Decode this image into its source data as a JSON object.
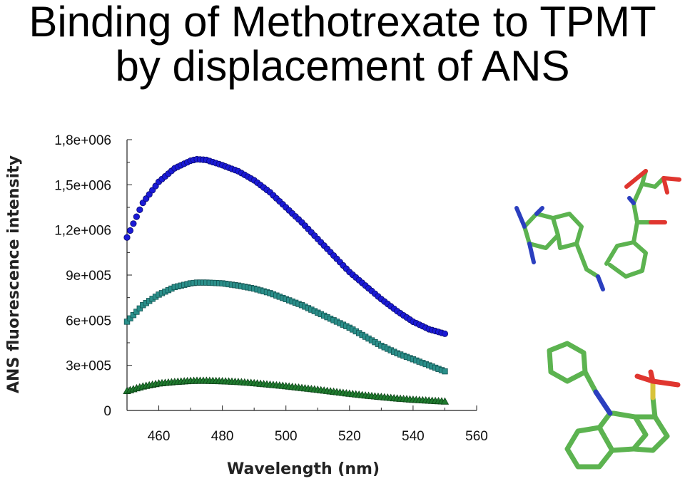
{
  "title": {
    "line1": "Binding of Methotrexate to TPMT",
    "line2": "by displacement of ANS"
  },
  "chart_data": {
    "type": "scatter",
    "title": "Binding of Methotrexate to TPMT by displacement of ANS",
    "xlabel": "Wavelength (nm)",
    "ylabel": "ANS fluorescence intensity",
    "xlim": [
      450,
      560
    ],
    "ylim": [
      0,
      1800000
    ],
    "x_ticks": [
      460,
      480,
      500,
      520,
      540,
      560
    ],
    "y_ticks": [
      0,
      300000,
      600000,
      900000,
      1200000,
      1500000,
      1800000
    ],
    "x_tick_labels": [
      "460",
      "480",
      "500",
      "520",
      "540",
      "560"
    ],
    "y_tick_labels": [
      "0",
      "3e+005",
      "6e+005",
      "9e+005",
      "1,2e+006",
      "1,5e+006",
      "1,8e+006"
    ],
    "grid": false,
    "x": [
      450,
      455,
      460,
      465,
      470,
      472,
      475,
      480,
      485,
      490,
      495,
      500,
      505,
      510,
      515,
      520,
      525,
      530,
      535,
      540,
      545,
      550
    ],
    "series": [
      {
        "marker": "circle",
        "color": "#1a1ad6",
        "values": [
          1150000,
          1380000,
          1520000,
          1610000,
          1660000,
          1670000,
          1665000,
          1630000,
          1590000,
          1530000,
          1450000,
          1350000,
          1250000,
          1140000,
          1030000,
          920000,
          830000,
          740000,
          660000,
          590000,
          540000,
          510000
        ]
      },
      {
        "marker": "square",
        "color": "#2a8f8a",
        "values": [
          590000,
          700000,
          770000,
          820000,
          845000,
          850000,
          850000,
          845000,
          830000,
          810000,
          780000,
          740000,
          700000,
          650000,
          600000,
          550000,
          490000,
          430000,
          380000,
          340000,
          300000,
          260000
        ]
      },
      {
        "marker": "triangle",
        "color": "#1f7a2e",
        "values": [
          130000,
          160000,
          180000,
          190000,
          197000,
          198000,
          198000,
          195000,
          190000,
          182000,
          172000,
          162000,
          150000,
          138000,
          125000,
          112000,
          100000,
          90000,
          80000,
          72000,
          66000,
          60000
        ]
      }
    ]
  },
  "molecules": {
    "carbon_color": "#5cb350",
    "nitrogen_color": "#2b3fbf",
    "oxygen_color": "#e0362f",
    "sulfur_color": "#d8c33a",
    "items": [
      "methotrexate-structure",
      "ans-structure"
    ]
  }
}
